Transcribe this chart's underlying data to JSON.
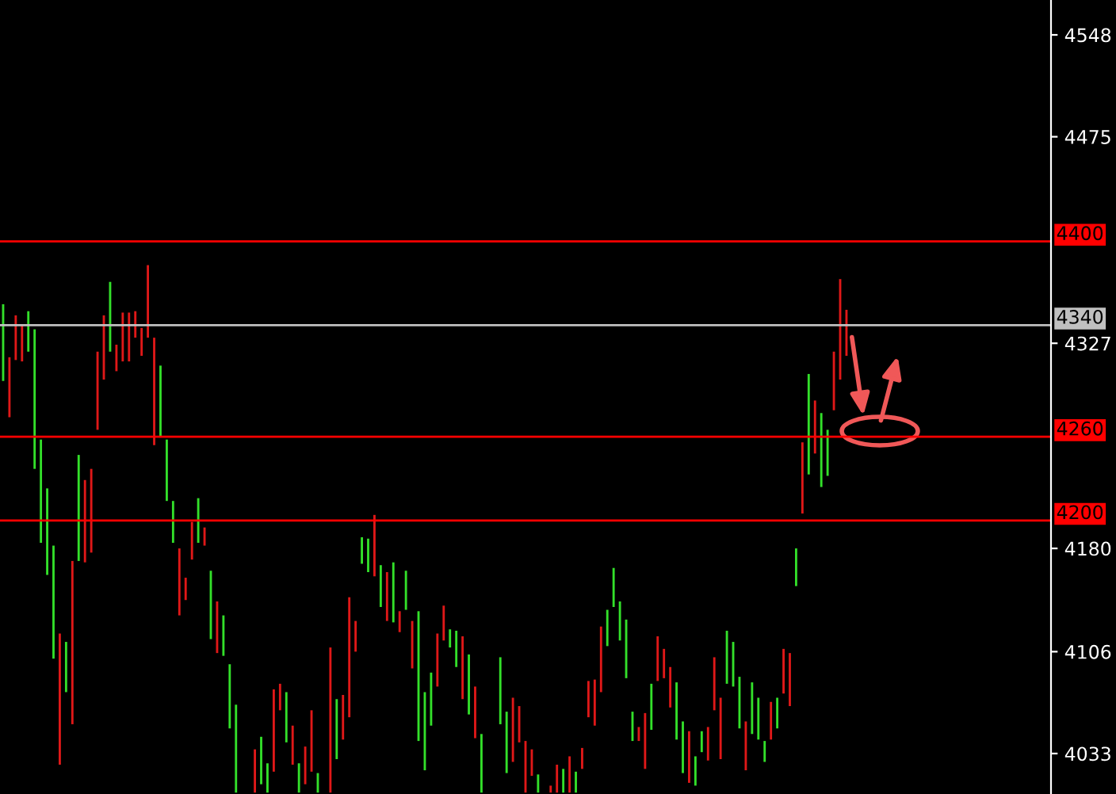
{
  "chart_data": {
    "type": "candlestick",
    "categories": [
      null,
      null,
      null,
      null,
      null,
      null,
      null,
      null,
      null,
      null,
      null,
      null,
      null,
      null,
      null,
      null,
      null,
      null,
      null,
      null,
      null,
      null,
      null,
      null,
      null,
      null,
      null,
      null,
      null,
      null,
      null,
      null,
      null,
      null,
      null,
      null,
      null,
      null,
      null,
      null,
      null,
      null,
      null,
      null,
      null,
      null,
      null,
      null,
      null,
      null,
      null,
      null,
      null,
      null,
      null,
      null,
      null,
      null,
      null,
      null,
      null,
      null,
      null,
      null,
      null,
      null,
      null,
      null,
      null,
      null,
      null,
      null,
      null,
      null,
      null,
      null,
      null,
      null,
      null,
      null,
      null,
      null,
      null,
      null,
      null,
      null,
      null,
      null,
      null,
      null,
      null,
      null,
      null,
      null,
      null,
      null,
      null,
      null,
      null,
      null,
      null,
      null,
      null,
      null,
      null,
      null,
      null,
      null,
      null,
      null,
      null,
      null,
      null,
      null,
      null,
      null,
      null,
      null,
      null,
      null,
      null,
      null,
      null,
      null,
      null,
      null,
      null,
      null,
      null,
      null,
      null,
      null,
      null,
      null,
      null,
      null,
      null,
      null,
      null,
      null,
      null,
      null,
      null,
      null,
      null,
      null,
      null,
      null,
      null,
      null,
      null,
      null,
      null,
      null,
      null,
      null,
      null,
      null,
      null,
      null,
      null,
      null,
      null,
      null,
      null,
      null,
      null
    ],
    "ohlc": [
      [
        4300,
        4355,
        4300,
        4355
      ],
      [
        4317,
        4317,
        4274,
        4274
      ],
      [
        4347,
        4347,
        4315,
        4315
      ],
      [
        4340,
        4340,
        4314,
        4314
      ],
      [
        4321,
        4350,
        4321,
        4350
      ],
      [
        4237,
        4337,
        4237,
        4337
      ],
      [
        4184,
        4258,
        4184,
        4258
      ],
      [
        4161,
        4223,
        4161,
        4223
      ],
      [
        4101,
        4182,
        4101,
        4182
      ],
      [
        4119,
        4119,
        4025,
        4025
      ],
      [
        4077,
        4113,
        4077,
        4113
      ],
      [
        4171,
        4171,
        4054,
        4054
      ],
      [
        4171,
        4247,
        4171,
        4247
      ],
      [
        4229,
        4229,
        4170,
        4170
      ],
      [
        4237,
        4237,
        4177,
        4177
      ],
      [
        4321,
        4321,
        4265,
        4265
      ],
      [
        4347,
        4347,
        4301,
        4301
      ],
      [
        4321,
        4371,
        4321,
        4371
      ],
      [
        4326,
        4326,
        4307,
        4307
      ],
      [
        4349,
        4349,
        4314,
        4314
      ],
      [
        4349,
        4349,
        4314,
        4314
      ],
      [
        4350,
        4350,
        4331,
        4331
      ],
      [
        4338,
        4338,
        4318,
        4318
      ],
      [
        4383,
        4383,
        4331,
        4331
      ],
      [
        4331,
        4331,
        4254,
        4254
      ],
      [
        4260,
        4311,
        4260,
        4311
      ],
      [
        4214,
        4258,
        4214,
        4258
      ],
      [
        4184,
        4214,
        4184,
        4214
      ],
      [
        4180,
        4180,
        4132,
        4132
      ],
      [
        4159,
        4159,
        4143,
        4143
      ],
      [
        4199,
        4199,
        4172,
        4172
      ],
      [
        4184,
        4216,
        4184,
        4216
      ],
      [
        4195,
        4195,
        4182,
        4182
      ],
      [
        4115,
        4164,
        4115,
        4164
      ],
      [
        4142,
        4142,
        4105,
        4105
      ],
      [
        4103,
        4132,
        4103,
        4132
      ],
      [
        4051,
        4097,
        4051,
        4097
      ],
      [
        4005,
        4068,
        4005,
        4068
      ],
      null,
      null,
      [
        4036,
        4036,
        4005,
        4005
      ],
      [
        4011,
        4045,
        4011,
        4045
      ],
      [
        4005,
        4026,
        4005,
        4026
      ],
      [
        4079,
        4079,
        4020,
        4020
      ],
      [
        4083,
        4083,
        4064,
        4064
      ],
      [
        4041,
        4077,
        4041,
        4077
      ],
      [
        4053,
        4053,
        4025,
        4025
      ],
      [
        4005,
        4026,
        4005,
        4026
      ],
      [
        4038,
        4038,
        4011,
        4011
      ],
      [
        4064,
        4064,
        4020,
        4020
      ],
      [
        4005,
        4019,
        4005,
        4019
      ],
      null,
      [
        4109,
        4109,
        4005,
        4005
      ],
      [
        4029,
        4072,
        4029,
        4072
      ],
      [
        4075,
        4075,
        4043,
        4043
      ],
      [
        4145,
        4145,
        4059,
        4059
      ],
      [
        4128,
        4128,
        4106,
        4106
      ],
      [
        4169,
        4188,
        4169,
        4188
      ],
      [
        4163,
        4187,
        4163,
        4187
      ],
      [
        4204,
        4204,
        4160,
        4160
      ],
      [
        4138,
        4168,
        4138,
        4168
      ],
      [
        4163,
        4163,
        4128,
        4128
      ],
      [
        4127,
        4170,
        4127,
        4170
      ],
      [
        4135,
        4135,
        4120,
        4120
      ],
      [
        4136,
        4164,
        4136,
        4164
      ],
      [
        4128,
        4128,
        4094,
        4094
      ],
      [
        4042,
        4135,
        4042,
        4135
      ],
      [
        4021,
        4077,
        4021,
        4077
      ],
      [
        4053,
        4091,
        4053,
        4091
      ],
      [
        4119,
        4119,
        4081,
        4081
      ],
      [
        4139,
        4139,
        4114,
        4114
      ],
      [
        4109,
        4122,
        4109,
        4122
      ],
      [
        4095,
        4121,
        4095,
        4121
      ],
      [
        4117,
        4117,
        4072,
        4072
      ],
      [
        4061,
        4104,
        4061,
        4104
      ],
      [
        4081,
        4081,
        4044,
        4044
      ],
      [
        4005,
        4047,
        4005,
        4047
      ],
      null,
      null,
      [
        4054,
        4102,
        4054,
        4102
      ],
      [
        4019,
        4063,
        4019,
        4063
      ],
      [
        4073,
        4073,
        4027,
        4027
      ],
      [
        4067,
        4067,
        4041,
        4041
      ],
      [
        4042,
        4042,
        4005,
        4005
      ],
      [
        4036,
        4036,
        4017,
        4017
      ],
      [
        4005,
        4018,
        4005,
        4018
      ],
      null,
      [
        4010,
        4010,
        4005,
        4005
      ],
      [
        4025,
        4025,
        4005,
        4005
      ],
      [
        4005,
        4022,
        4005,
        4022
      ],
      [
        4031,
        4031,
        4005,
        4005
      ],
      [
        4005,
        4020,
        4005,
        4020
      ],
      [
        4037,
        4037,
        4022,
        4022
      ],
      [
        4085,
        4085,
        4059,
        4059
      ],
      [
        4086,
        4086,
        4053,
        4053
      ],
      [
        4124,
        4124,
        4077,
        4077
      ],
      [
        4110,
        4136,
        4110,
        4136
      ],
      [
        4138,
        4166,
        4138,
        4166
      ],
      [
        4114,
        4142,
        4114,
        4142
      ],
      [
        4087,
        4129,
        4087,
        4129
      ],
      [
        4042,
        4063,
        4042,
        4063
      ],
      [
        4052,
        4052,
        4042,
        4042
      ],
      [
        4062,
        4062,
        4022,
        4022
      ],
      [
        4050,
        4083,
        4050,
        4083
      ],
      [
        4117,
        4117,
        4085,
        4085
      ],
      [
        4108,
        4108,
        4087,
        4087
      ],
      [
        4095,
        4095,
        4066,
        4066
      ],
      [
        4043,
        4084,
        4043,
        4084
      ],
      [
        4019,
        4056,
        4019,
        4056
      ],
      [
        4049,
        4049,
        4012,
        4012
      ],
      [
        4010,
        4031,
        4010,
        4031
      ],
      [
        4034,
        4049,
        4034,
        4049
      ],
      [
        4052,
        4052,
        4028,
        4028
      ],
      [
        4102,
        4102,
        4064,
        4064
      ],
      [
        4073,
        4073,
        4029,
        4029
      ],
      [
        4083,
        4121,
        4083,
        4121
      ],
      [
        4081,
        4113,
        4081,
        4113
      ],
      [
        4051,
        4088,
        4051,
        4088
      ],
      [
        4056,
        4056,
        4021,
        4021
      ],
      [
        4047,
        4084,
        4047,
        4084
      ],
      [
        4043,
        4073,
        4043,
        4073
      ],
      [
        4027,
        4042,
        4027,
        4042
      ],
      [
        4070,
        4070,
        4043,
        4043
      ],
      [
        4051,
        4073,
        4051,
        4073
      ],
      [
        4108,
        4108,
        4076,
        4076
      ],
      [
        4105,
        4105,
        4067,
        4067
      ],
      [
        4153,
        4180,
        4153,
        4180
      ],
      [
        4256,
        4256,
        4205,
        4205
      ],
      [
        4233,
        4305,
        4233,
        4305
      ],
      [
        4286,
        4286,
        4248,
        4248
      ],
      [
        4224,
        4277,
        4224,
        4277
      ],
      [
        4232,
        4265,
        4232,
        4265
      ],
      [
        4321,
        4321,
        4279,
        4279
      ],
      [
        4373,
        4373,
        4301,
        4301
      ],
      [
        4351,
        4351,
        4318,
        4318
      ],
      null,
      null,
      null,
      null,
      null,
      null,
      null,
      null,
      null,
      null,
      null,
      null,
      null,
      null,
      null,
      null,
      null,
      null,
      null,
      null,
      null,
      null,
      null,
      null,
      null,
      null,
      null,
      null,
      null,
      null,
      null,
      null
    ],
    "ylim": [
      4004,
      4573
    ],
    "yticks": [
      4548,
      4475,
      4327,
      4180,
      4106,
      4033
    ],
    "ref_lines": [
      {
        "axis": "y",
        "value": 4400,
        "label": "4400",
        "color": "#ff0000"
      },
      {
        "axis": "y",
        "value": 4340,
        "label": "4340",
        "color": "#c0c0c0"
      },
      {
        "axis": "y",
        "value": 4260,
        "label": "4260",
        "color": "#ff0000"
      },
      {
        "axis": "y",
        "value": 4200,
        "label": "4200",
        "color": "#ff0000"
      }
    ]
  }
}
